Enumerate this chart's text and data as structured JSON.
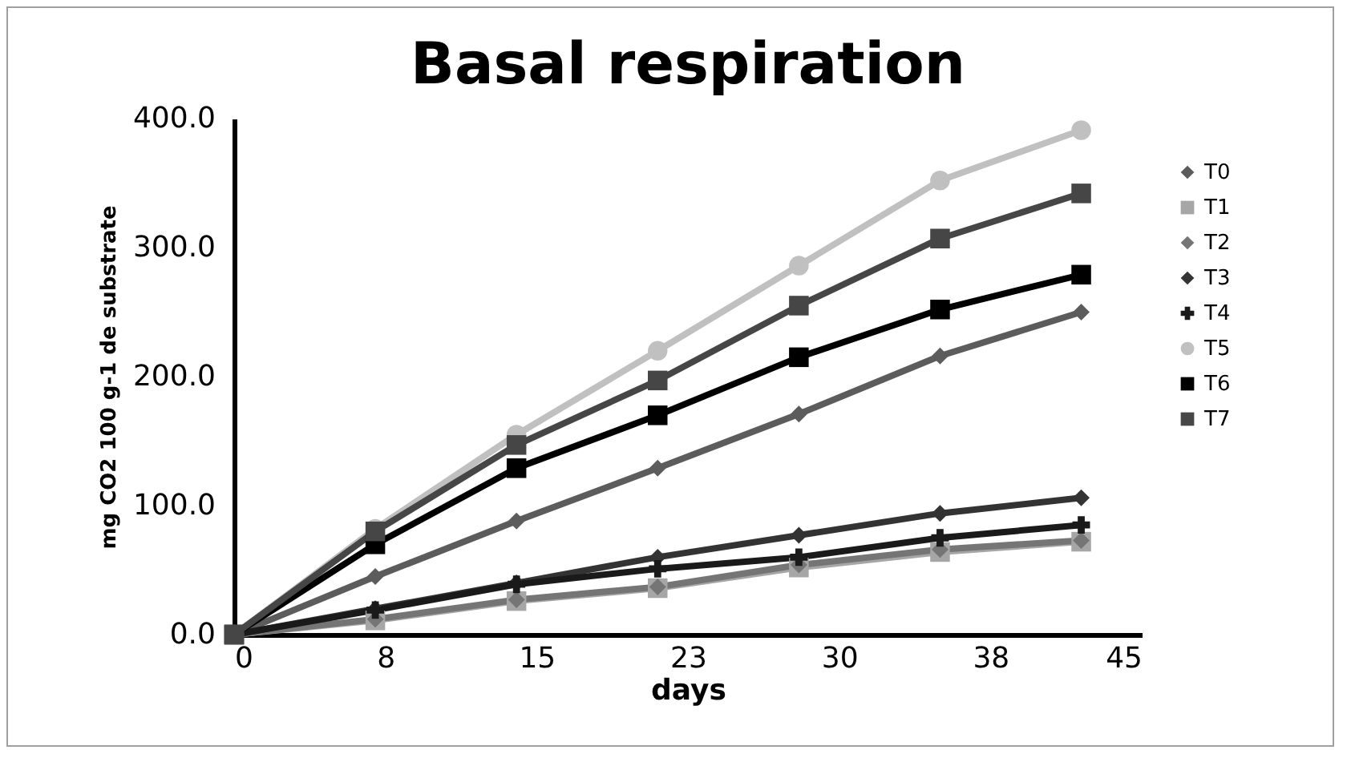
{
  "chart_data": {
    "type": "line",
    "title": "Basal respiration",
    "xlabel": "days",
    "ylabel": "mg CO2 100 g-1 de substrate",
    "x": [
      0,
      7,
      14,
      21,
      28,
      35,
      42
    ],
    "xlim": [
      0,
      45
    ],
    "xticks": [
      0,
      {
        "value": 7.5,
        "label": "8"
      },
      15,
      {
        "value": 22.5,
        "label": "23"
      },
      30,
      {
        "value": 37.5,
        "label": "38"
      },
      45
    ],
    "ylim": [
      0,
      400
    ],
    "yticks": [
      {
        "value": 0,
        "label": "0.0"
      },
      {
        "value": 100,
        "label": "100.0"
      },
      {
        "value": 200,
        "label": "200.0"
      },
      {
        "value": 300,
        "label": "300.0"
      },
      {
        "value": 400,
        "label": "400.0"
      }
    ],
    "grid": false,
    "legend": "right",
    "series": [
      {
        "name": "T0",
        "color": "#5c5c5c",
        "marker": "diamond",
        "values": [
          0,
          45,
          88,
          129,
          171,
          216,
          250
        ]
      },
      {
        "name": "T1",
        "color": "#a6a6a6",
        "marker": "square",
        "values": [
          0,
          11,
          26,
          36,
          52,
          64,
          72
        ]
      },
      {
        "name": "T2",
        "color": "#757575",
        "marker": "diamond",
        "values": [
          0,
          12,
          27,
          37,
          54,
          66,
          73
        ]
      },
      {
        "name": "T3",
        "color": "#333333",
        "marker": "diamond",
        "values": [
          0,
          20,
          40,
          60,
          77,
          94,
          106
        ]
      },
      {
        "name": "T4",
        "color": "#1a1a1a",
        "marker": "cross",
        "values": [
          0,
          19,
          39,
          51,
          60,
          75,
          85
        ]
      },
      {
        "name": "T5",
        "color": "#c0c0c0",
        "marker": "circle",
        "values": [
          0,
          82,
          155,
          220,
          286,
          352,
          391
        ]
      },
      {
        "name": "T6",
        "color": "#000000",
        "marker": "square",
        "values": [
          0,
          70,
          129,
          170,
          215,
          252,
          279
        ]
      },
      {
        "name": "T7",
        "color": "#464646",
        "marker": "square",
        "values": [
          0,
          80,
          147,
          197,
          255,
          307,
          342
        ]
      }
    ]
  }
}
